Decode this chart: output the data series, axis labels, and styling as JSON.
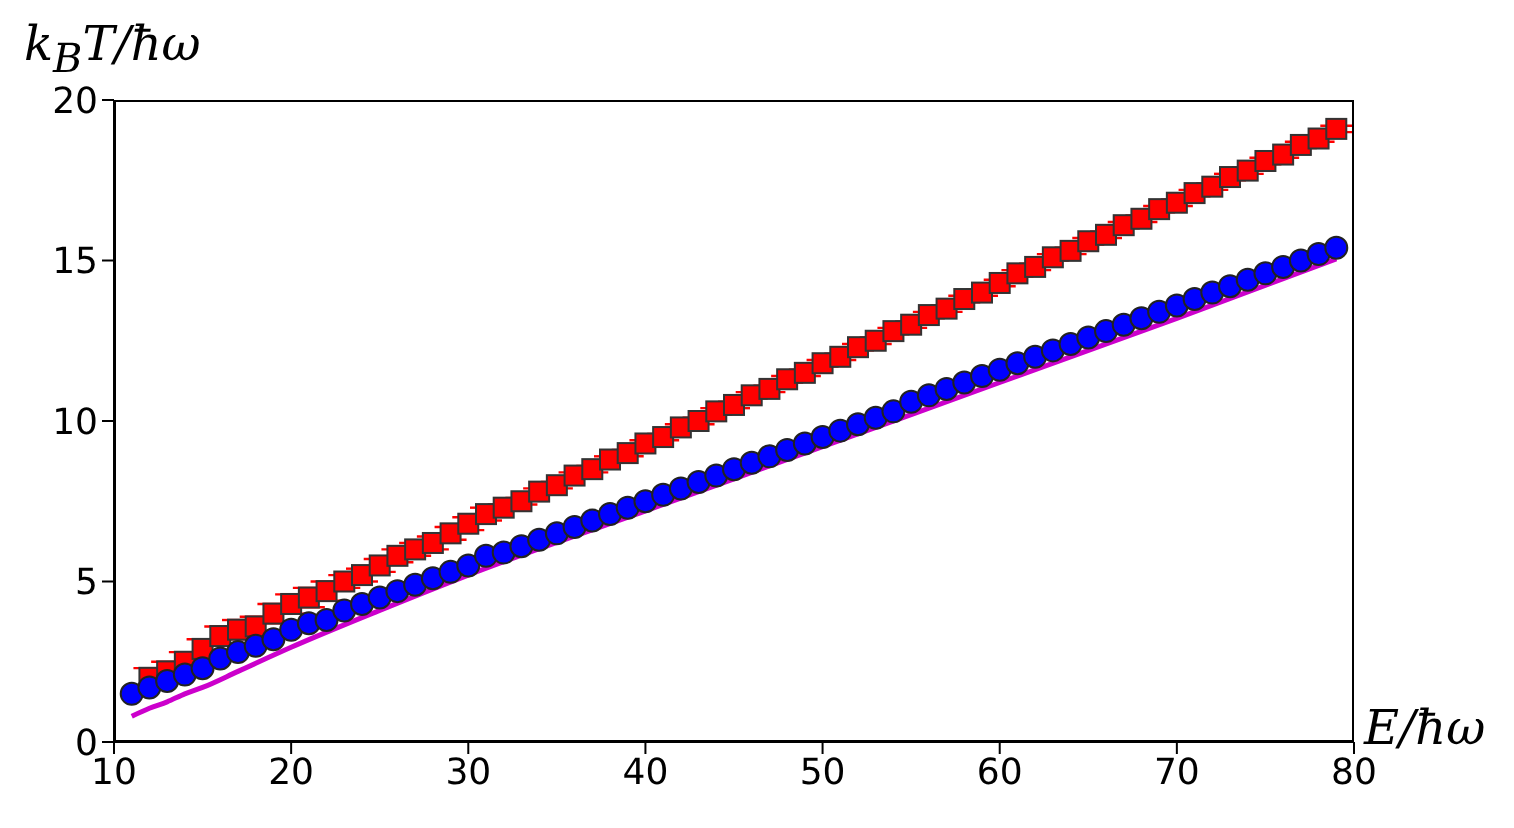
{
  "chart_data": {
    "type": "scatter",
    "xlabel": "E/ħω",
    "ylabel": "k$_{B}$T/ħω",
    "xlim": [
      10,
      80
    ],
    "xticks": [
      10,
      20,
      30,
      40,
      50,
      60,
      70,
      80
    ],
    "ylim": [
      0,
      20
    ],
    "yticks": [
      0,
      5,
      10,
      15,
      20
    ],
    "grid": false,
    "series": [
      {
        "marker": "square",
        "color": "#ff0000",
        "x": [
          12,
          13,
          14,
          15,
          16,
          17,
          18,
          19,
          20,
          21,
          22,
          23,
          24,
          25,
          26,
          27,
          28,
          29,
          30,
          31,
          32,
          33,
          34,
          35,
          36,
          37,
          38,
          39,
          40,
          41,
          42,
          43,
          44,
          45,
          46,
          47,
          48,
          49,
          50,
          51,
          52,
          53,
          54,
          55,
          56,
          57,
          58,
          59,
          60,
          61,
          62,
          63,
          64,
          65,
          66,
          67,
          68,
          69,
          70,
          71,
          72,
          73,
          74,
          75,
          76,
          77,
          78,
          79
        ],
        "values": [
          2.0,
          2.2,
          2.5,
          2.9,
          3.3,
          3.5,
          3.6,
          4.0,
          4.3,
          4.5,
          4.7,
          5.0,
          5.2,
          5.5,
          5.8,
          6.0,
          6.2,
          6.5,
          6.8,
          7.1,
          7.3,
          7.5,
          7.8,
          8.0,
          8.3,
          8.5,
          8.8,
          9.0,
          9.3,
          9.5,
          9.8,
          10.0,
          10.3,
          10.5,
          10.8,
          11.0,
          11.3,
          11.5,
          11.8,
          12.0,
          12.3,
          12.5,
          12.8,
          13.0,
          13.3,
          13.5,
          13.8,
          14.0,
          14.3,
          14.6,
          14.8,
          15.1,
          15.3,
          15.6,
          15.8,
          16.1,
          16.3,
          16.6,
          16.8,
          17.1,
          17.3,
          17.6,
          17.8,
          18.1,
          18.3,
          18.6,
          18.8,
          19.1
        ],
        "errors": [
          0.3,
          0.3,
          0.3,
          0.3,
          0.3,
          0.3,
          0.3,
          0.3,
          0.3,
          0.3,
          0.3,
          0.2,
          0.2,
          0.2,
          0.2,
          0.2,
          0.2,
          0.2,
          0.2,
          0.2,
          0.1,
          0.1,
          0.1,
          0.1,
          0.1,
          0.1,
          0.1,
          0.1,
          0.1,
          0.1,
          0.1,
          0.1,
          0.1,
          0.1,
          0.1,
          0.1,
          0.1,
          0.1,
          0.1,
          0.1,
          0.1,
          0.1,
          0.1,
          0.1,
          0.1,
          0.1,
          0.1,
          0.1,
          0.1,
          0.1,
          0.1,
          0.1,
          0.1,
          0.1,
          0.1,
          0.1,
          0.1,
          0.1,
          0.1,
          0.1,
          0.1,
          0.1,
          0.1,
          0.1,
          0.1,
          0.1,
          0.1,
          0.1
        ]
      },
      {
        "marker": "circle",
        "color": "#0000ff",
        "x": [
          11,
          12,
          13,
          14,
          15,
          16,
          17,
          18,
          19,
          20,
          21,
          22,
          23,
          24,
          25,
          26,
          27,
          28,
          29,
          30,
          31,
          32,
          33,
          34,
          35,
          36,
          37,
          38,
          39,
          40,
          41,
          42,
          43,
          44,
          45,
          46,
          47,
          48,
          49,
          50,
          51,
          52,
          53,
          54,
          55,
          56,
          57,
          58,
          59,
          60,
          61,
          62,
          63,
          64,
          65,
          66,
          67,
          68,
          69,
          70,
          71,
          72,
          73,
          74,
          75,
          76,
          77,
          78,
          79
        ],
        "values": [
          1.5,
          1.7,
          1.9,
          2.1,
          2.3,
          2.6,
          2.8,
          3.0,
          3.2,
          3.5,
          3.7,
          3.8,
          4.1,
          4.3,
          4.5,
          4.7,
          4.9,
          5.1,
          5.3,
          5.5,
          5.8,
          5.9,
          6.1,
          6.3,
          6.5,
          6.7,
          6.9,
          7.1,
          7.3,
          7.5,
          7.7,
          7.9,
          8.1,
          8.3,
          8.5,
          8.7,
          8.9,
          9.1,
          9.3,
          9.5,
          9.7,
          9.9,
          10.1,
          10.3,
          10.6,
          10.8,
          11.0,
          11.2,
          11.4,
          11.6,
          11.8,
          12.0,
          12.2,
          12.4,
          12.6,
          12.8,
          13.0,
          13.2,
          13.4,
          13.6,
          13.8,
          14.0,
          14.2,
          14.4,
          14.6,
          14.8,
          15.0,
          15.2,
          15.4
        ]
      },
      {
        "type": "line",
        "marker": "none",
        "line_style": "solid",
        "color": "#cc00cc",
        "x": [
          11,
          12,
          13,
          14,
          15,
          17,
          20,
          25,
          30,
          40,
          50,
          60,
          70,
          79
        ],
        "values": [
          0.8,
          1.05,
          1.25,
          1.5,
          1.7,
          2.2,
          2.95,
          4.1,
          5.2,
          7.2,
          9.2,
          11.2,
          13.2,
          15.05
        ]
      }
    ]
  }
}
